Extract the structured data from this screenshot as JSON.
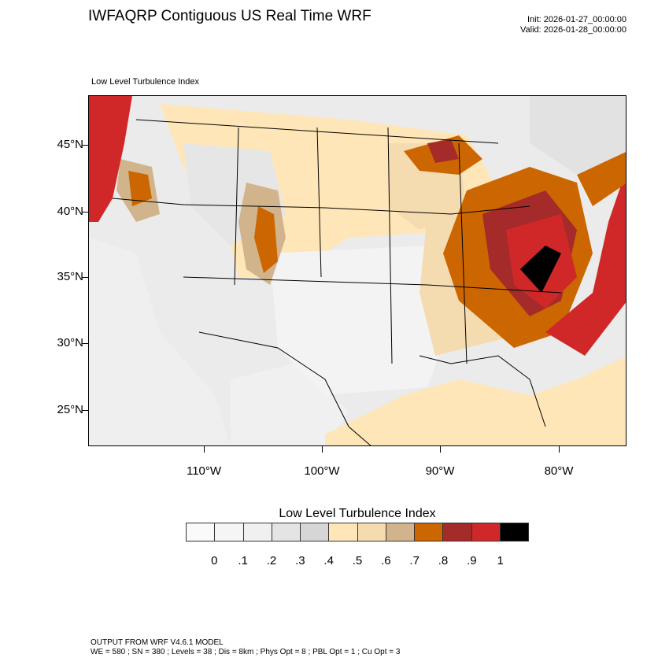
{
  "header": {
    "title": "IWFAQRP Contiguous US Real Time WRF",
    "init": "Init: 2026-01-27_00:00:00",
    "valid": "Valid: 2026-01-28_00:00:00"
  },
  "map": {
    "subtitle": "Low Level Turbulence Index",
    "lat_labels": [
      "45°N",
      "40°N",
      "35°N",
      "30°N",
      "25°N"
    ],
    "lon_labels": [
      "110°W",
      "100°W",
      "90°W",
      "80°W"
    ]
  },
  "colorbar": {
    "title": "Low Level Turbulence Index",
    "labels": [
      "0",
      ".1",
      ".2",
      ".3",
      ".4",
      ".5",
      ".6",
      ".7",
      ".8",
      ".9",
      "1"
    ],
    "colors": [
      "#fafafa",
      "#f5f5f5",
      "#f0f0f0",
      "#e4e4e4",
      "#d6d6d6",
      "#ffe6b8",
      "#f5dcb0",
      "#d2b48c",
      "#cc6600",
      "#a52a2a",
      "#d02828",
      "#000000"
    ]
  },
  "footer": {
    "line1": "OUTPUT FROM WRF V4.6.1 MODEL",
    "line2": "WE = 580 ; SN = 380 ; Levels = 38 ; Dis = 8km ; Phys Opt = 8 ; PBL Opt = 1 ; Cu Opt = 3"
  }
}
